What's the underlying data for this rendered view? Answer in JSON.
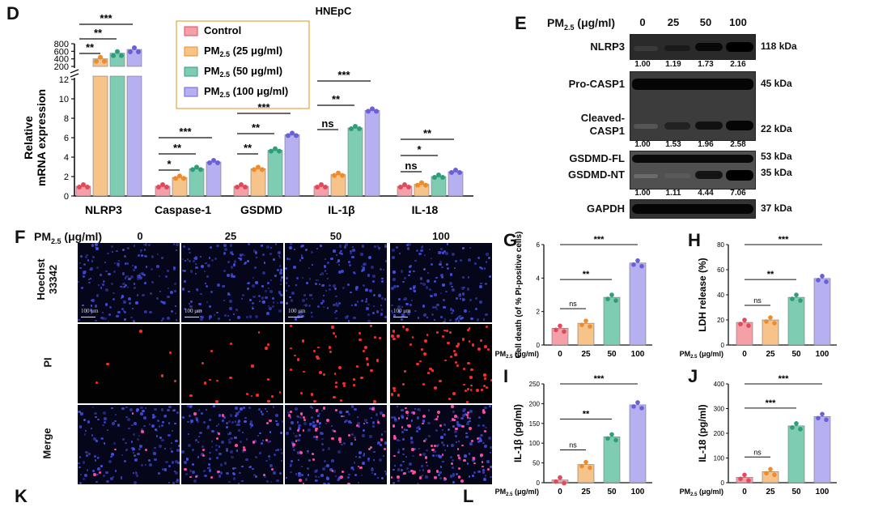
{
  "panels": {
    "D": "D",
    "E": "E",
    "F": "F",
    "G": "G",
    "H": "H",
    "I": "I",
    "J": "J",
    "K": "K",
    "L": "L"
  },
  "colors": {
    "Control": "#f5a0a8",
    "PM25_25": "#f6c48a",
    "PM25_50": "#7ecdb3",
    "PM25_100": "#b6b0f0",
    "Control_dot": "#e24a5b",
    "PM25_25_dot": "#ee8c2b",
    "PM25_50_dot": "#2f9e78",
    "PM25_100_dot": "#6b5fd9"
  },
  "chart_data": [
    {
      "panel": "D",
      "type": "bar",
      "title": "HNEpC",
      "ylabel": "Relative mRNA expression",
      "categories": [
        "NLRP3",
        "Caspase-1",
        "GSDMD",
        "IL-1β",
        "IL-18"
      ],
      "ylim_lower": [
        0,
        12
      ],
      "yticks_lower": [
        "0",
        "2",
        "4",
        "6",
        "8",
        "10",
        "12"
      ],
      "ylim_upper": [
        200,
        800
      ],
      "yticks_upper": [
        "200",
        "400",
        "600",
        "800"
      ],
      "legend_position": "top-center",
      "series": [
        {
          "name": "Control",
          "legend_prefix": "Control",
          "legend_sub": "",
          "legend_suffix": "",
          "values": [
            1,
            1,
            1,
            1,
            1
          ]
        },
        {
          "name": "PM2.5 (25 μg/ml)",
          "legend_prefix": "PM",
          "legend_sub": "2.5",
          "legend_suffix": " (25 μg/ml)",
          "values": [
            400,
            1.9,
            2.8,
            2.2,
            1.2
          ]
        },
        {
          "name": "PM2.5 (50 μg/ml)",
          "legend_prefix": "PM",
          "legend_sub": "2.5",
          "legend_suffix": " (50 μg/ml)",
          "values": [
            550,
            2.8,
            4.7,
            7.0,
            2.0
          ]
        },
        {
          "name": "PM2.5 (100 μg/ml)",
          "legend_prefix": "PM",
          "legend_sub": "2.5",
          "legend_suffix": " (100 μg/ml)",
          "values": [
            650,
            3.5,
            6.3,
            8.8,
            2.5
          ]
        }
      ],
      "significance": [
        {
          "group": 0,
          "to": 1,
          "label": "**"
        },
        {
          "group": 0,
          "to": 2,
          "label": "**"
        },
        {
          "group": 0,
          "to": 3,
          "label": "***"
        },
        {
          "group": 1,
          "to": 1,
          "label": "*"
        },
        {
          "group": 1,
          "to": 2,
          "label": "**"
        },
        {
          "group": 1,
          "to": 3,
          "label": "***"
        },
        {
          "group": 2,
          "to": 1,
          "label": "**"
        },
        {
          "group": 2,
          "to": 2,
          "label": "**"
        },
        {
          "group": 2,
          "to": 3,
          "label": "***"
        },
        {
          "group": 3,
          "to": 1,
          "label": "ns"
        },
        {
          "group": 3,
          "to": 2,
          "label": "**"
        },
        {
          "group": 3,
          "to": 3,
          "label": "***"
        },
        {
          "group": 4,
          "to": 1,
          "label": "ns"
        },
        {
          "group": 4,
          "to": 2,
          "label": "*"
        },
        {
          "group": 4,
          "to": 3,
          "label": "**"
        }
      ]
    },
    {
      "panel": "G",
      "type": "bar",
      "ylabel": "Cell death (of % PI-positive cells)",
      "xlabel_prefix": "PM",
      "xlabel_sub": "2.5",
      "xlabel_suffix": " (μg/ml)",
      "categories": [
        "0",
        "25",
        "50",
        "100"
      ],
      "values": [
        1.0,
        1.3,
        2.85,
        4.9
      ],
      "ylim": [
        0,
        6
      ],
      "yticks": [
        "0",
        "2",
        "4",
        "6"
      ],
      "significance": [
        {
          "to": 1,
          "label": "ns"
        },
        {
          "to": 2,
          "label": "**"
        },
        {
          "to": 3,
          "label": "***"
        }
      ]
    },
    {
      "panel": "H",
      "type": "bar",
      "ylabel": "LDH release (%)",
      "xlabel_prefix": "PM",
      "xlabel_sub": "2.5",
      "xlabel_suffix": " (μg/ml)",
      "categories": [
        "0",
        "25",
        "50",
        "100"
      ],
      "values": [
        18,
        20,
        38,
        53
      ],
      "ylim": [
        0,
        80
      ],
      "yticks": [
        "0",
        "20",
        "40",
        "60",
        "80"
      ],
      "significance": [
        {
          "to": 1,
          "label": "ns"
        },
        {
          "to": 2,
          "label": "**"
        },
        {
          "to": 3,
          "label": "***"
        }
      ]
    },
    {
      "panel": "I",
      "type": "bar",
      "ylabel": "IL-1β (pg/ml)",
      "xlabel_prefix": "PM",
      "xlabel_sub": "2.5",
      "xlabel_suffix": " (μg/ml)",
      "categories": [
        "0",
        "25",
        "50",
        "100"
      ],
      "values": [
        7,
        46,
        116,
        197
      ],
      "ylim": [
        0,
        250
      ],
      "yticks": [
        "0",
        "50",
        "100",
        "150",
        "200",
        "250"
      ],
      "significance": [
        {
          "to": 1,
          "label": "ns"
        },
        {
          "to": 2,
          "label": "**"
        },
        {
          "to": 3,
          "label": "***"
        }
      ]
    },
    {
      "panel": "J",
      "type": "bar",
      "ylabel": "IL-18 (pg/ml)",
      "xlabel_prefix": "PM",
      "xlabel_sub": "2.5",
      "xlabel_suffix": " (μg/ml)",
      "categories": [
        "0",
        "25",
        "50",
        "100"
      ],
      "values": [
        22,
        45,
        230,
        268
      ],
      "ylim": [
        0,
        400
      ],
      "yticks": [
        "0",
        "100",
        "200",
        "300",
        "400"
      ],
      "significance": [
        {
          "to": 1,
          "label": "ns"
        },
        {
          "to": 2,
          "label": "***"
        },
        {
          "to": 3,
          "label": "***"
        }
      ]
    }
  ],
  "blot": {
    "header_prefix": "PM",
    "header_sub": "2.5",
    "header_suffix": " (μg/ml)",
    "doses": [
      "0",
      "25",
      "50",
      "100"
    ],
    "rows": [
      {
        "label": "NLRP3",
        "kda": "118 kDa",
        "ratios": [
          "1.00",
          "1.19",
          "1.73",
          "2.16"
        ]
      },
      {
        "label": "Pro-CASP1",
        "kda": "45 kDa"
      },
      {
        "label": "Cleaved-CASP1",
        "kda": "22 kDa",
        "ratios": [
          "1.00",
          "1.53",
          "1.96",
          "2.58"
        ]
      },
      {
        "label": "GSDMD-FL",
        "kda": "53 kDa"
      },
      {
        "label": "GSDMD-NT",
        "kda": "35 kDa",
        "ratios": [
          "1.00",
          "1.11",
          "4.44",
          "7.06"
        ]
      },
      {
        "label": "GAPDH",
        "kda": "37 kDa"
      }
    ],
    "cleaved_line1": "Cleaved-",
    "cleaved_line2": "CASP1"
  },
  "microscopy": {
    "header_prefix": "PM",
    "header_sub": "2.5",
    "header_suffix": " (μg/ml)",
    "columns": [
      "0",
      "25",
      "50",
      "100"
    ],
    "rows": [
      "Hoechst 33342",
      "PI",
      "Merge"
    ],
    "row_line1": "Hoechst",
    "row_line2": "33342",
    "scale_bar": "100 μm"
  }
}
